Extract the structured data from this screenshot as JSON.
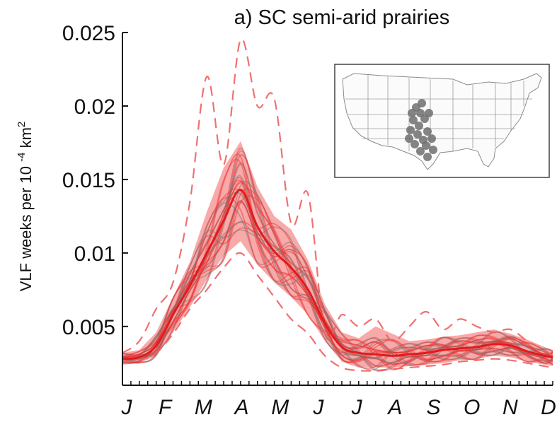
{
  "chart_data": {
    "type": "line",
    "title": "a) SC semi-arid prairies",
    "xlabel": "",
    "ylabel": "VLF weeks per 10",
    "ylabel_exp": "-4",
    "ylabel_unit": "km",
    "ylabel_unit_exp": "2",
    "x_tick_labels": [
      "J",
      "F",
      "M",
      "A",
      "M",
      "J",
      "J",
      "A",
      "S",
      "O",
      "N",
      "D"
    ],
    "y_ticks": [
      0.005,
      0.01,
      0.015,
      0.02,
      0.025
    ],
    "y_tick_labels": [
      "0.005",
      "0.01",
      "0.015",
      "0.02",
      "0.025"
    ],
    "xlim": [
      1,
      52
    ],
    "ylim": [
      0.001,
      0.025
    ],
    "grid": false,
    "inset": "map of the contiguous United States with the SC semi-arid prairies region highlighted",
    "colors": {
      "mean_line": "#e31a1c",
      "ensemble": "#f03030",
      "band": "#f04040",
      "observed": "#7a7a7a",
      "dashed": "#f06060",
      "map_region": "#6e6e6e",
      "map_lines": "#999999"
    },
    "x": [
      1,
      3,
      5,
      7,
      9,
      11,
      13,
      15,
      17,
      19,
      21,
      23,
      25,
      27,
      29,
      31,
      33,
      35,
      37,
      39,
      41,
      43,
      45,
      47,
      49,
      51,
      52
    ],
    "series": [
      {
        "role": "mean",
        "values": [
          0.0028,
          0.0029,
          0.0037,
          0.0058,
          0.0078,
          0.01,
          0.0122,
          0.0143,
          0.0118,
          0.0101,
          0.009,
          0.0075,
          0.0052,
          0.0036,
          0.0032,
          0.0031,
          0.003,
          0.0031,
          0.0032,
          0.0034,
          0.0035,
          0.0036,
          0.0038,
          0.0037,
          0.0033,
          0.003,
          0.0029
        ]
      },
      {
        "role": "band_upper",
        "values": [
          0.0032,
          0.0034,
          0.0046,
          0.007,
          0.0094,
          0.0128,
          0.0158,
          0.0176,
          0.0145,
          0.0125,
          0.0116,
          0.0095,
          0.0065,
          0.0046,
          0.0042,
          0.005,
          0.0045,
          0.004,
          0.0041,
          0.0043,
          0.0044,
          0.0046,
          0.0048,
          0.0045,
          0.0041,
          0.0036,
          0.0034
        ]
      },
      {
        "role": "band_lower",
        "values": [
          0.0024,
          0.0025,
          0.003,
          0.0046,
          0.0063,
          0.0082,
          0.0098,
          0.0108,
          0.0092,
          0.008,
          0.007,
          0.0058,
          0.004,
          0.0026,
          0.0022,
          0.0022,
          0.0022,
          0.0023,
          0.0024,
          0.0025,
          0.0027,
          0.0028,
          0.003,
          0.0029,
          0.0026,
          0.0024,
          0.0023
        ]
      },
      {
        "role": "dashed_upper",
        "values": [
          0.0032,
          0.004,
          0.0062,
          0.008,
          0.0135,
          0.022,
          0.016,
          0.0245,
          0.02,
          0.0205,
          0.012,
          0.014,
          0.0045,
          0.0058,
          0.005,
          0.0055,
          0.004,
          0.005,
          0.006,
          0.0048,
          0.0055,
          0.005,
          0.0046,
          0.0048,
          0.004,
          0.0034,
          0.003
        ]
      },
      {
        "role": "dashed_lower",
        "values": [
          0.0026,
          0.0027,
          0.0032,
          0.0045,
          0.0062,
          0.0075,
          0.009,
          0.01,
          0.0085,
          0.007,
          0.0055,
          0.0045,
          0.003,
          0.0022,
          0.002,
          0.002,
          0.0021,
          0.0022,
          0.0023,
          0.0024,
          0.0026,
          0.0027,
          0.0028,
          0.0027,
          0.0025,
          0.0023,
          0.0022
        ]
      }
    ]
  }
}
